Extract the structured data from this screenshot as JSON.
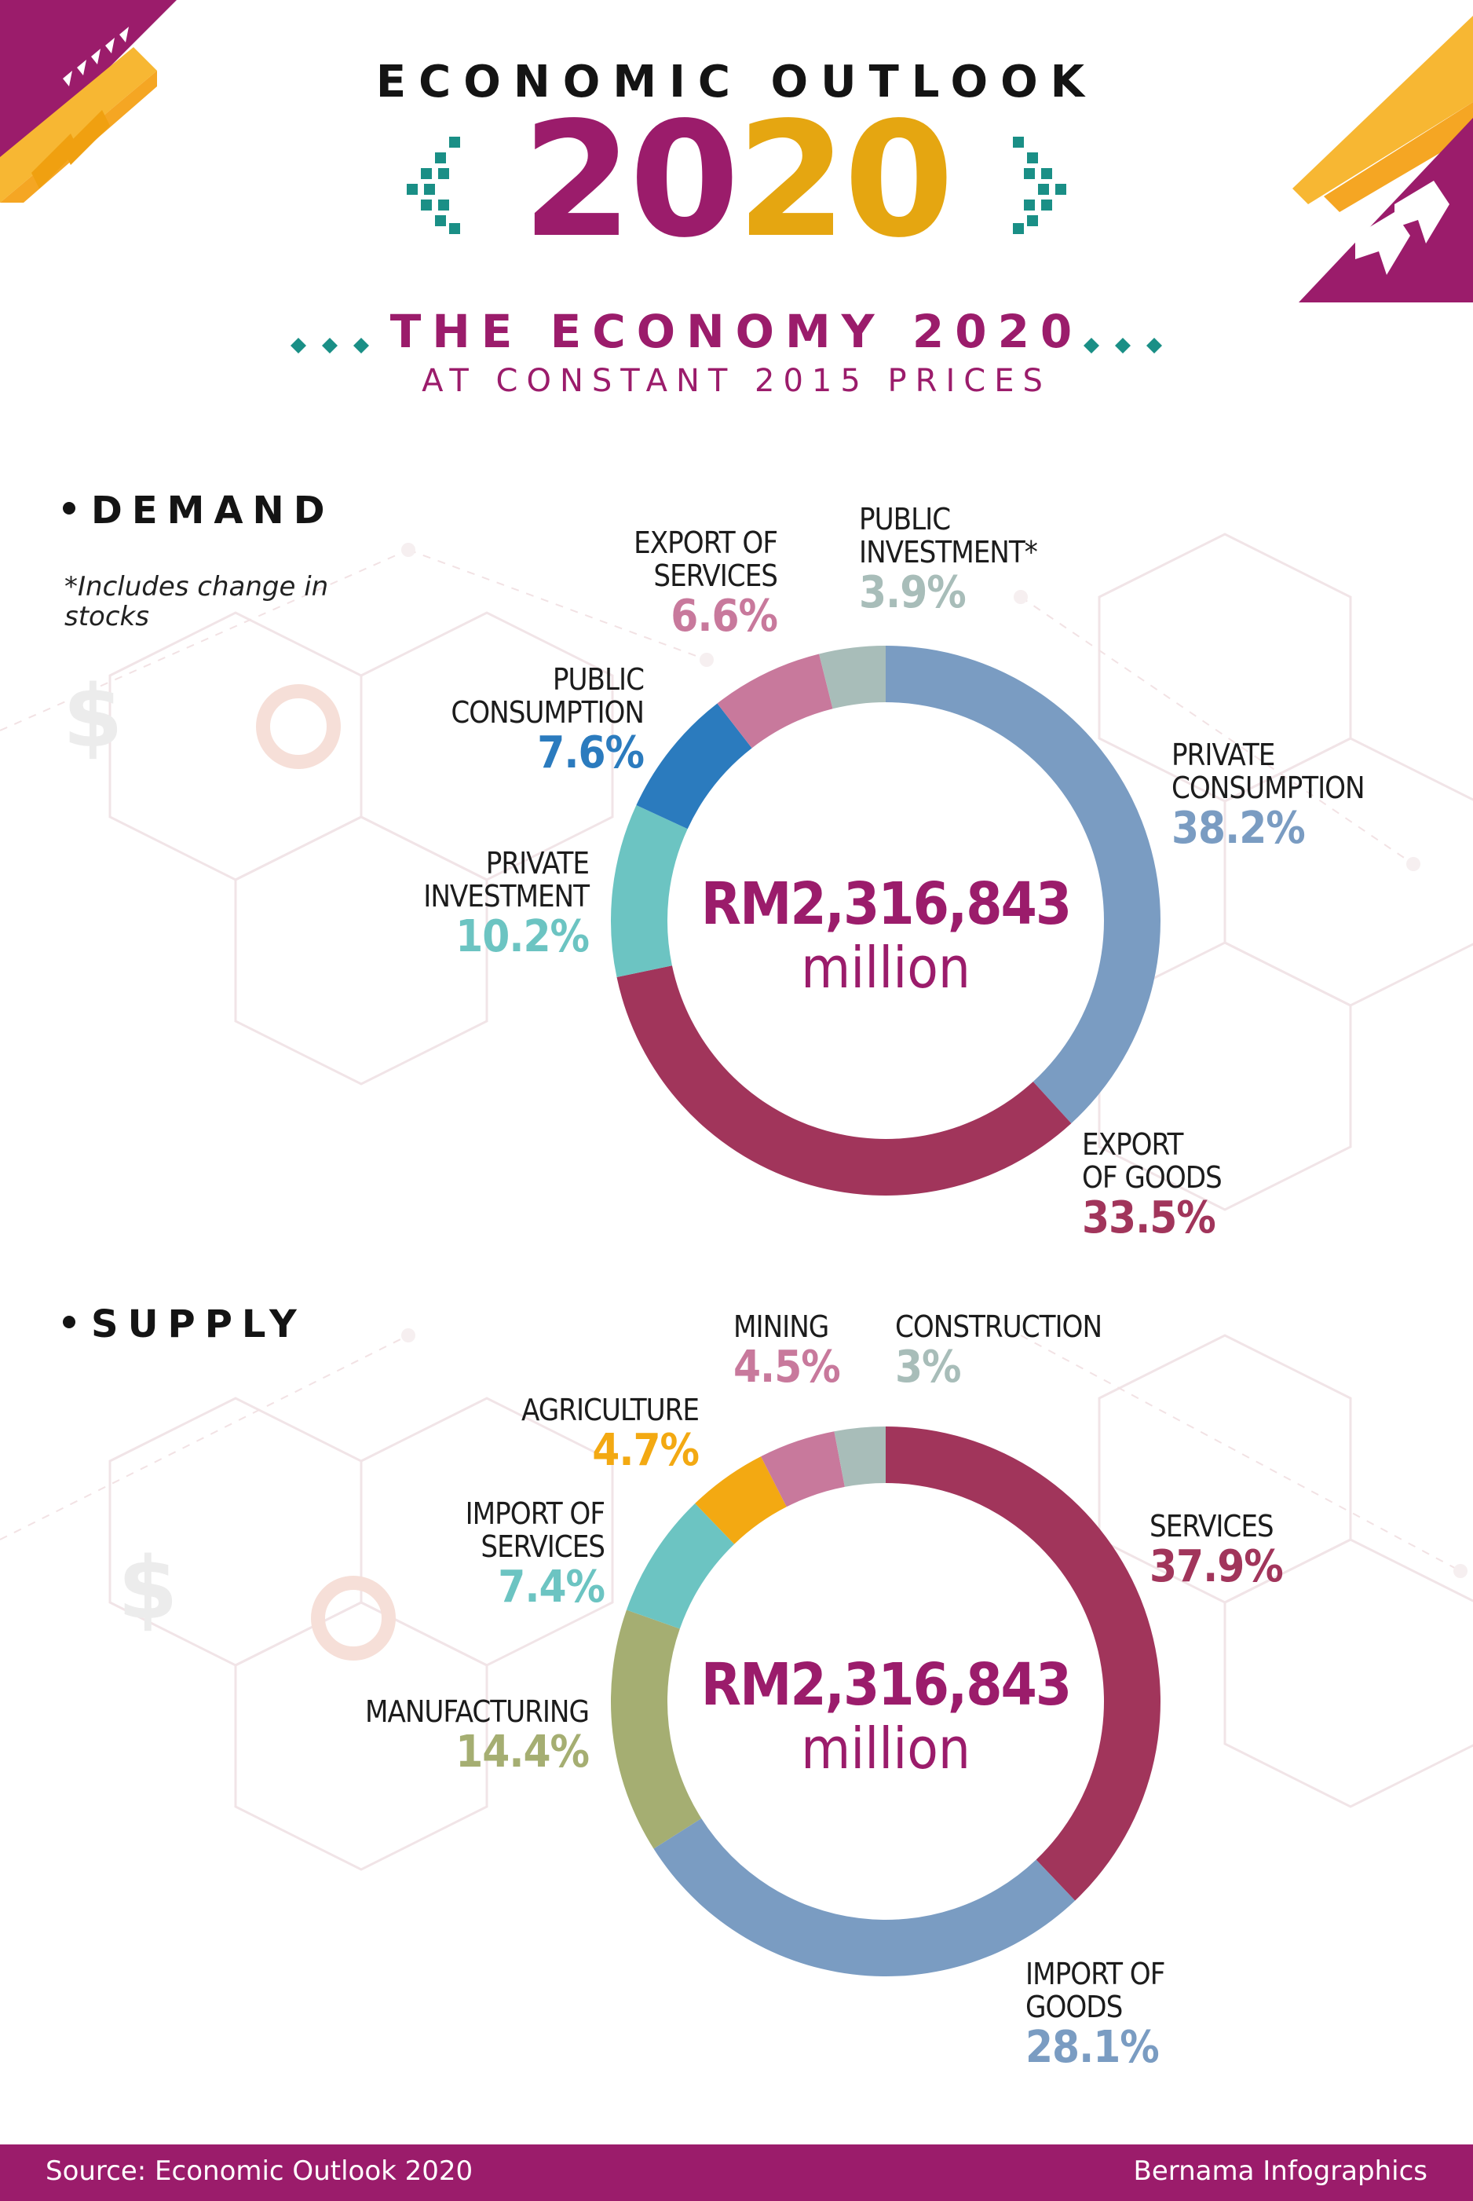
{
  "header": {
    "kicker": "ECONOMIC OUTLOOK",
    "year_part1": "20",
    "year_part2": "20",
    "title": "THE ECONOMY 2020",
    "subtitle": "AT CONSTANT 2015 PRICES"
  },
  "colors": {
    "magenta": "#9b1c6b",
    "gold": "#e5a611",
    "teal": "#1a8f86",
    "steel_blue": "#7a9cc2",
    "crimson": "#a1355b",
    "aqua": "#6cc4c2",
    "blue": "#2b7bbe",
    "rose": "#c8799c",
    "gray_green": "#a8bdb9",
    "olive": "#a5ae72",
    "amber": "#f3a912"
  },
  "demand": {
    "label": "DEMAND",
    "note": "*Includes change in\n stocks",
    "total": "RM2,316,843",
    "unit": "million"
  },
  "supply": {
    "label": "SUPPLY",
    "total": "RM2,316,843",
    "unit": "million"
  },
  "chart_data": [
    {
      "type": "pie",
      "title": "DEMAND",
      "unit": "%",
      "slices": [
        {
          "name": "PRIVATE\nCONSUMPTION",
          "value": 38.2,
          "label": "38.2%",
          "color": "#7a9cc2"
        },
        {
          "name": "EXPORT\nOF GOODS",
          "value": 33.5,
          "label": "33.5%",
          "color": "#a1355b"
        },
        {
          "name": "PRIVATE\nINVESTMENT",
          "value": 10.2,
          "label": "10.2%",
          "color": "#6cc4c2"
        },
        {
          "name": "PUBLIC\nCONSUMPTION",
          "value": 7.6,
          "label": "7.6%",
          "color": "#2b7bbe"
        },
        {
          "name": "EXPORT OF\nSERVICES",
          "value": 6.6,
          "label": "6.6%",
          "color": "#c8799c"
        },
        {
          "name": "PUBLIC\nINVESTMENT*",
          "value": 3.9,
          "label": "3.9%",
          "color": "#a8bdb9"
        }
      ]
    },
    {
      "type": "pie",
      "title": "SUPPLY",
      "unit": "%",
      "slices": [
        {
          "name": "SERVICES",
          "value": 37.9,
          "label": "37.9%",
          "color": "#a1355b"
        },
        {
          "name": "IMPORT OF\nGOODS",
          "value": 28.1,
          "label": "28.1%",
          "color": "#7a9cc2"
        },
        {
          "name": "MANUFACTURING",
          "value": 14.4,
          "label": "14.4%",
          "color": "#a5ae72"
        },
        {
          "name": "IMPORT OF\nSERVICES",
          "value": 7.4,
          "label": "7.4%",
          "color": "#6cc4c2"
        },
        {
          "name": "AGRICULTURE",
          "value": 4.7,
          "label": "4.7%",
          "color": "#f3a912"
        },
        {
          "name": "MINING",
          "value": 4.5,
          "label": "4.5%",
          "color": "#c8799c"
        },
        {
          "name": "CONSTRUCTION",
          "value": 3,
          "label": "3%",
          "color": "#a8bdb9"
        }
      ]
    }
  ],
  "footer": {
    "source": "Source: Economic Outlook 2020",
    "credit": "Bernama Infographics"
  }
}
